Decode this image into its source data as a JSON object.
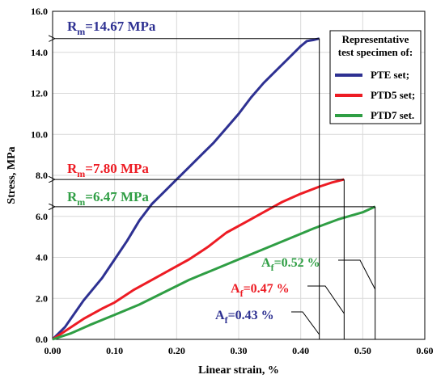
{
  "chart_data": {
    "type": "line",
    "title": "",
    "xlabel": "Linear strain, %",
    "ylabel": "Stress, MPa",
    "xlim": [
      0,
      0.6
    ],
    "ylim": [
      0,
      16
    ],
    "xticks": [
      "0.00",
      "0.10",
      "0.20",
      "0.30",
      "0.40",
      "0.50",
      "0.60"
    ],
    "yticks": [
      "0.0",
      "2.0",
      "4.0",
      "6.0",
      "8.0",
      "10.0",
      "12.0",
      "14.0",
      "16.0"
    ],
    "grid": true,
    "legend_title": "Representative test specimen of:",
    "legend_position": "top-right",
    "series": [
      {
        "name": "PTE set;",
        "color": "#2e3192",
        "x": [
          0,
          0.02,
          0.05,
          0.08,
          0.1,
          0.12,
          0.14,
          0.16,
          0.18,
          0.2,
          0.22,
          0.24,
          0.26,
          0.28,
          0.3,
          0.32,
          0.34,
          0.36,
          0.38,
          0.4,
          0.41,
          0.42,
          0.43
        ],
        "y": [
          0,
          0.6,
          1.9,
          3.0,
          3.9,
          4.8,
          5.8,
          6.6,
          7.2,
          7.8,
          8.4,
          9.0,
          9.6,
          10.3,
          11.0,
          11.8,
          12.5,
          13.1,
          13.7,
          14.3,
          14.55,
          14.6,
          14.67
        ]
      },
      {
        "name": "PTD5 set;",
        "color": "#ed1c24",
        "x": [
          0,
          0.02,
          0.05,
          0.08,
          0.1,
          0.13,
          0.16,
          0.19,
          0.22,
          0.25,
          0.28,
          0.31,
          0.34,
          0.37,
          0.4,
          0.43,
          0.45,
          0.47
        ],
        "y": [
          0,
          0.4,
          1.0,
          1.5,
          1.8,
          2.4,
          2.9,
          3.4,
          3.9,
          4.5,
          5.2,
          5.7,
          6.2,
          6.7,
          7.1,
          7.45,
          7.65,
          7.8
        ]
      },
      {
        "name": "PTD7 set.",
        "color": "#2f9e44",
        "x": [
          0,
          0.03,
          0.06,
          0.1,
          0.14,
          0.18,
          0.22,
          0.26,
          0.3,
          0.34,
          0.38,
          0.42,
          0.46,
          0.5,
          0.52
        ],
        "y": [
          0,
          0.3,
          0.7,
          1.2,
          1.7,
          2.3,
          2.9,
          3.4,
          3.9,
          4.4,
          4.9,
          5.4,
          5.85,
          6.2,
          6.47
        ]
      }
    ],
    "annotations": {
      "rm": [
        {
          "sub": "m",
          "text": "=14.67 MPa",
          "color": "#2e3192",
          "x_end": 0.43,
          "y": 14.67
        },
        {
          "sub": "m",
          "text": "=7.80 MPa",
          "color": "#ed1c24",
          "x_end": 0.47,
          "y": 7.8
        },
        {
          "sub": "m",
          "text": "=6.47 MPa",
          "color": "#2f9e44",
          "x_end": 0.52,
          "y": 6.47
        }
      ],
      "af": [
        {
          "sub": "f",
          "text": "=0.52 %",
          "color": "#2f9e44",
          "x": 0.52
        },
        {
          "sub": "f",
          "text": "=0.47 %",
          "color": "#ed1c24",
          "x": 0.47
        },
        {
          "sub": "f",
          "text": "=0.43 %",
          "color": "#2e3192",
          "x": 0.43
        }
      ],
      "rm_letter": "R",
      "af_letter": "A"
    }
  }
}
